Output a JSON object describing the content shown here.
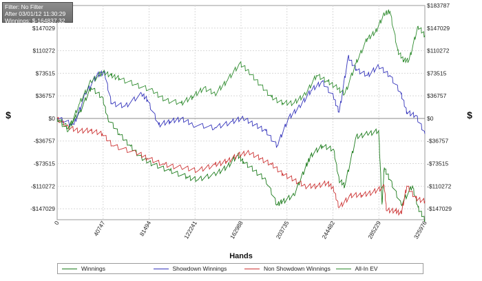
{
  "info": {
    "filter": "Filter: No Filter",
    "after": "After 03/01/12 11:30:29",
    "winnings": "Winnings: $-164837.32"
  },
  "chart_data": {
    "type": "line",
    "xlabel": "Hands",
    "ylabel_left": "$",
    "ylabel_right": "$",
    "xlim": [
      0,
      325976
    ],
    "ylim": [
      -164837,
      183787
    ],
    "x_ticks": [
      0,
      40747,
      81494,
      122241,
      162988,
      203735,
      244482,
      285229,
      325976
    ],
    "y_ticks_left": [
      147029,
      110272,
      73515,
      36757,
      0,
      -36757,
      -73515,
      -110272,
      -147029
    ],
    "y_ticks_right": [
      183787,
      147029,
      110272,
      73515,
      36757,
      0,
      -36757,
      -73515,
      -110272,
      -147029
    ],
    "y_tick_labels_left": [
      "$147029",
      "$110272",
      "$73515",
      "$36757",
      "$0",
      "-$36757",
      "-$73515",
      "-$110272",
      "-$147029"
    ],
    "y_tick_labels_right": [
      "$183787",
      "$147029",
      "$110272",
      "$73515",
      "$36757",
      "$0",
      "-$36757",
      "-$73515",
      "-$110272",
      "-$147029"
    ],
    "grid": true,
    "legend_position": "bottom",
    "series": [
      {
        "name": "Winnings",
        "color": "#1a7a1a",
        "x": [
          0,
          10000,
          20000,
          30000,
          40000,
          45000,
          55000,
          65000,
          75000,
          85000,
          100000,
          115000,
          125000,
          140000,
          150000,
          160000,
          165000,
          175000,
          185000,
          195000,
          200000,
          210000,
          220000,
          225000,
          235000,
          245000,
          250000,
          255000,
          265000,
          275000,
          285000,
          288000,
          290000,
          295000,
          305000,
          315000,
          320000,
          325976
        ],
        "y": [
          0,
          -15000,
          10000,
          50000,
          35000,
          0,
          -25000,
          -45000,
          -65000,
          -75000,
          -85000,
          -95000,
          -100000,
          -90000,
          -80000,
          -60000,
          -70000,
          -85000,
          -100000,
          -140000,
          -135000,
          -125000,
          -80000,
          -60000,
          -45000,
          -50000,
          -100000,
          -110000,
          -30000,
          -25000,
          -20000,
          -140000,
          -80000,
          -100000,
          -140000,
          -110000,
          -145000,
          -164837
        ]
      },
      {
        "name": "Showdown Winnings",
        "color": "#3333bb",
        "x": [
          0,
          15000,
          25000,
          35000,
          42000,
          48000,
          60000,
          75000,
          80000,
          90000,
          100000,
          110000,
          120000,
          140000,
          155000,
          165000,
          175000,
          185000,
          195000,
          205000,
          215000,
          225000,
          235000,
          245000,
          250000,
          258000,
          265000,
          275000,
          285000,
          295000,
          305000,
          310000,
          318000,
          325976
        ],
        "y": [
          0,
          -10000,
          40000,
          70000,
          75000,
          25000,
          20000,
          40000,
          30000,
          -10000,
          -5000,
          0,
          -10000,
          -15000,
          -5000,
          0,
          -10000,
          -20000,
          -45000,
          0,
          20000,
          45000,
          60000,
          35000,
          10000,
          100000,
          80000,
          70000,
          85000,
          70000,
          40000,
          10000,
          5000,
          -25000
        ]
      },
      {
        "name": "Non Showdown Winnings",
        "color": "#cc3333",
        "x": [
          0,
          10000,
          20000,
          30000,
          40000,
          50000,
          70000,
          80000,
          95000,
          110000,
          125000,
          140000,
          150000,
          160000,
          170000,
          180000,
          190000,
          200000,
          210000,
          220000,
          230000,
          240000,
          245000,
          250000,
          260000,
          270000,
          280000,
          290000,
          292000,
          300000,
          305000,
          310000,
          318000,
          325976
        ],
        "y": [
          0,
          -15000,
          -20000,
          -20000,
          -25000,
          -45000,
          -55000,
          -65000,
          -75000,
          -80000,
          -85000,
          -75000,
          -70000,
          -60000,
          -55000,
          -65000,
          -75000,
          -90000,
          -100000,
          -110000,
          -110000,
          -105000,
          -115000,
          -145000,
          -125000,
          -125000,
          -120000,
          -110000,
          -150000,
          -150000,
          -155000,
          -110000,
          -130000,
          -135000
        ]
      },
      {
        "name": "All-In EV",
        "color": "#2e8b2e",
        "x": [
          0,
          10000,
          20000,
          30000,
          40000,
          48000,
          55000,
          70000,
          85000,
          95000,
          110000,
          120000,
          130000,
          140000,
          150000,
          162000,
          170000,
          180000,
          190000,
          200000,
          210000,
          220000,
          230000,
          240000,
          248000,
          255000,
          265000,
          275000,
          282000,
          290000,
          295000,
          302000,
          307000,
          312000,
          320000,
          325976
        ],
        "y": [
          0,
          -20000,
          25000,
          60000,
          75000,
          70000,
          65000,
          55000,
          45000,
          30000,
          25000,
          35000,
          50000,
          40000,
          60000,
          90000,
          75000,
          55000,
          35000,
          25000,
          25000,
          40000,
          70000,
          60000,
          50000,
          40000,
          90000,
          130000,
          140000,
          170000,
          175000,
          110000,
          95000,
          95000,
          150000,
          135000
        ]
      }
    ]
  }
}
